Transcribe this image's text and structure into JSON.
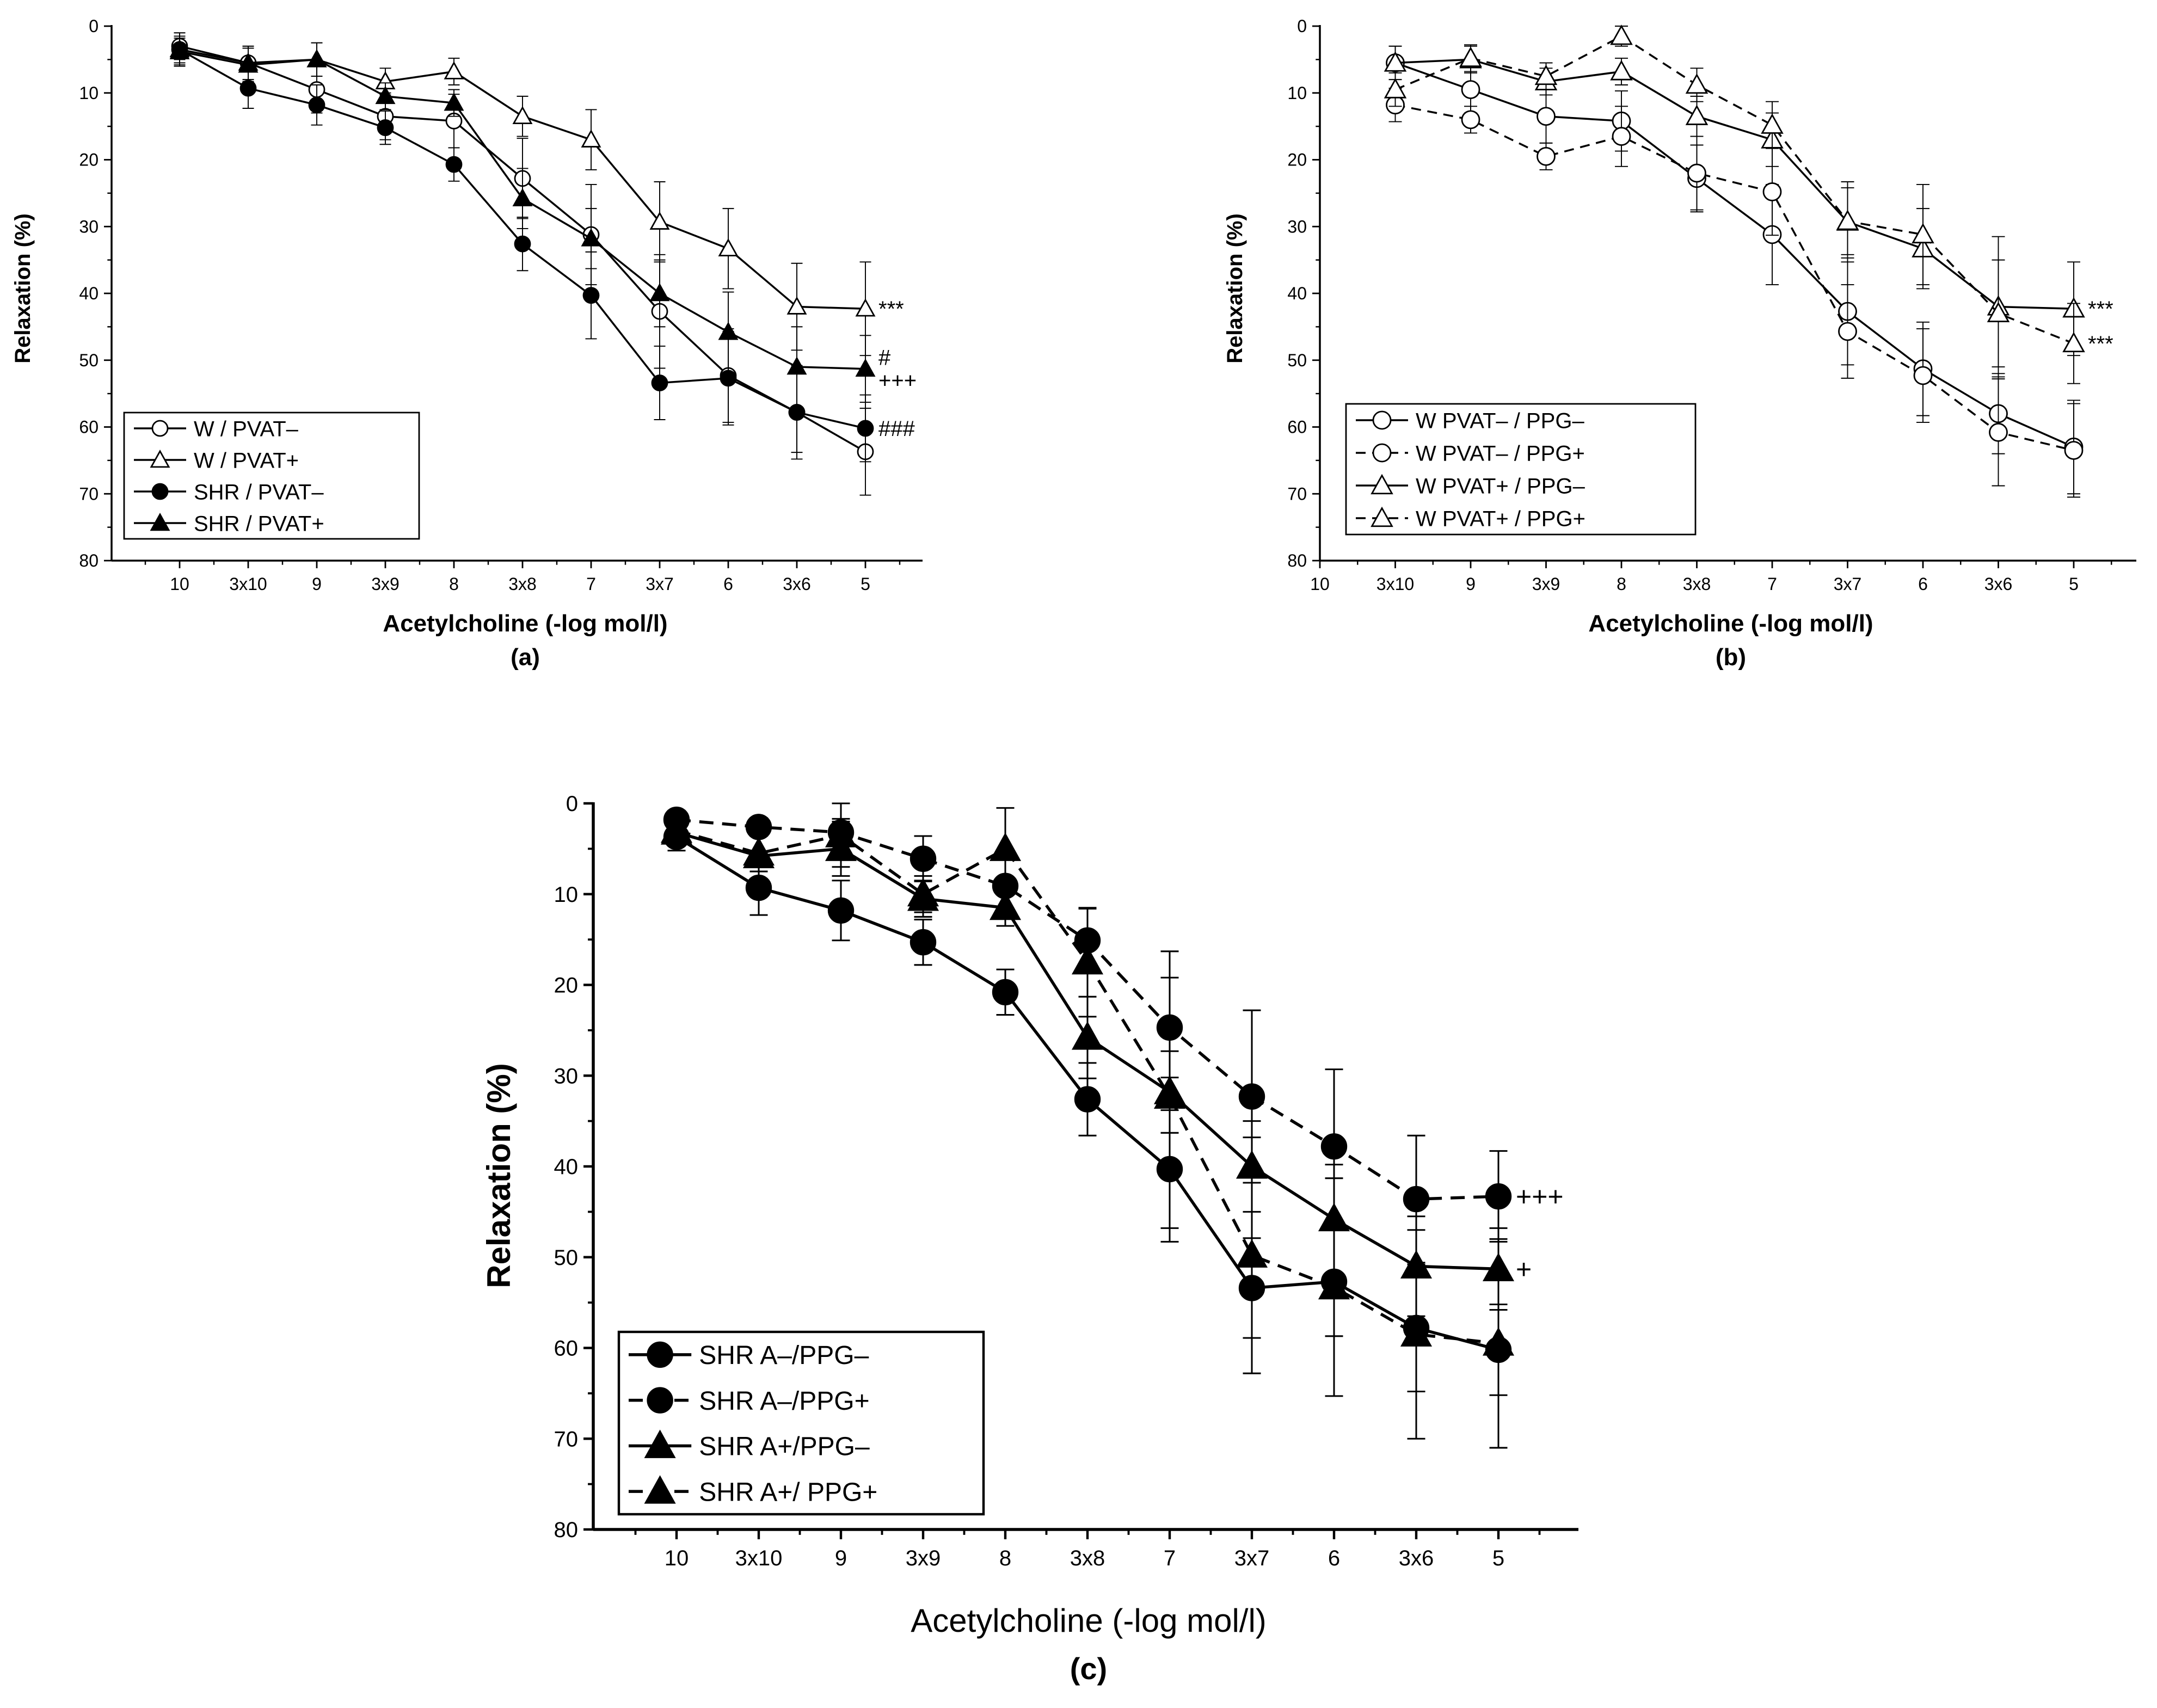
{
  "colors": {
    "ink": "#000000",
    "background": "#ffffff"
  },
  "chart_data": [
    {
      "id": "a",
      "type": "line",
      "panel_label": "(a)",
      "xlabel": "Acetylcholine (-log mol/l)",
      "ylabel": "Relaxation (%)",
      "categories": [
        "10",
        "3x10",
        "9",
        "3x9",
        "8",
        "3x8",
        "7",
        "3x7",
        "6",
        "3x6",
        "5"
      ],
      "ylim": [
        0,
        80
      ],
      "y_inverted": true,
      "yticks": [
        "0",
        "10",
        "20",
        "30",
        "40",
        "50",
        "60",
        "70",
        "80"
      ],
      "legend_position": "bottom-left",
      "series": [
        {
          "name": "W / PVAT–",
          "marker": "circle-open",
          "dash": "solid",
          "values": [
            3.0,
            5.5,
            9.5,
            13.5,
            14.2,
            22.8,
            31.2,
            42.7,
            52.3,
            57.8,
            63.7
          ],
          "errors": [
            2.0,
            2.5,
            3.5,
            3.5,
            4.0,
            6.0,
            7.5,
            8.5,
            7.0,
            6.0,
            6.5
          ],
          "annotation": ""
        },
        {
          "name": "W / PVAT+",
          "marker": "triangle-open",
          "dash": "solid",
          "values": [
            3.5,
            5.5,
            5.0,
            8.3,
            6.8,
            13.5,
            17.0,
            29.3,
            33.3,
            42.0,
            42.3
          ],
          "errors": [
            2.5,
            2.5,
            2.5,
            2.0,
            2.0,
            3.0,
            4.5,
            6.0,
            6.0,
            6.5,
            7.0
          ],
          "annotation": "***"
        },
        {
          "name": "SHR / PVAT–",
          "marker": "circle-filled",
          "dash": "solid",
          "values": [
            3.5,
            9.3,
            11.8,
            15.2,
            20.7,
            32.6,
            40.3,
            53.4,
            52.7,
            57.8,
            60.2
          ],
          "errors": [
            2.0,
            3.0,
            3.0,
            2.5,
            2.5,
            4.0,
            6.5,
            5.5,
            7.0,
            7.0,
            5.0
          ],
          "annotation": "###"
        },
        {
          "name": "SHR / PVAT+",
          "marker": "triangle-filled",
          "dash": "solid",
          "values": [
            3.8,
            5.8,
            5.0,
            10.5,
            11.5,
            25.8,
            31.8,
            40.0,
            45.8,
            51.0,
            51.3
          ],
          "errors": [
            2.0,
            2.5,
            2.5,
            2.0,
            2.0,
            4.5,
            4.5,
            5.0,
            6.0,
            6.0,
            5.0
          ],
          "annotation": "#\n+++"
        }
      ]
    },
    {
      "id": "b",
      "type": "line",
      "panel_label": "(b)",
      "xlabel": "Acetylcholine (-log mol/l)",
      "ylabel": "Relaxation (%)",
      "categories": [
        "10",
        "3x10",
        "9",
        "3x9",
        "8",
        "3x8",
        "7",
        "3x7",
        "6",
        "3x6",
        "5"
      ],
      "ylim": [
        0,
        80
      ],
      "y_inverted": true,
      "yticks": [
        "0",
        "10",
        "20",
        "30",
        "40",
        "50",
        "60",
        "70",
        "80"
      ],
      "legend_position": "bottom-left",
      "series": [
        {
          "name": "W PVAT– / PPG–",
          "marker": "circle-open",
          "dash": "solid",
          "values": [
            null,
            5.5,
            9.5,
            13.5,
            14.2,
            22.8,
            31.2,
            42.7,
            51.3,
            58.0,
            63.0
          ],
          "errors": [
            null,
            2.5,
            3.5,
            4.0,
            4.5,
            5.0,
            7.5,
            8.0,
            7.0,
            6.0,
            7.0
          ],
          "annotation": ""
        },
        {
          "name": "W PVAT– / PPG+",
          "marker": "circle-open",
          "dash": "dashed",
          "values": [
            null,
            11.8,
            14.0,
            19.5,
            16.5,
            22.0,
            24.8,
            45.7,
            52.3,
            60.8,
            63.5
          ],
          "errors": [
            null,
            2.5,
            2.0,
            2.0,
            4.5,
            5.5,
            6.5,
            7.0,
            7.0,
            8.0,
            7.0
          ],
          "annotation": ""
        },
        {
          "name": "W PVAT+ / PPG–",
          "marker": "triangle-open",
          "dash": "solid",
          "values": [
            null,
            5.5,
            5.0,
            8.3,
            6.8,
            13.5,
            17.0,
            29.3,
            33.3,
            42.0,
            42.3
          ],
          "errors": [
            null,
            2.5,
            2.0,
            2.0,
            2.0,
            3.0,
            4.0,
            6.0,
            6.0,
            10.5,
            7.0
          ],
          "annotation": "***"
        },
        {
          "name": "W PVAT+ / PPG+",
          "marker": "triangle-open",
          "dash": "dashed",
          "values": [
            null,
            9.5,
            4.8,
            7.5,
            1.5,
            8.8,
            14.8,
            29.2,
            31.2,
            43.0,
            47.5
          ],
          "errors": [
            null,
            2.5,
            2.0,
            2.0,
            1.5,
            2.5,
            3.5,
            5.0,
            7.5,
            8.0,
            6.0
          ],
          "annotation": "***"
        }
      ]
    },
    {
      "id": "c",
      "type": "line",
      "panel_label": "(c)",
      "xlabel": "Acetylcholine (-log mol/l)",
      "ylabel": "Relaxation (%)",
      "categories": [
        "10",
        "3x10",
        "9",
        "3x9",
        "8",
        "3x8",
        "7",
        "3x7",
        "6",
        "3x6",
        "5"
      ],
      "ylim": [
        0,
        80
      ],
      "y_inverted": true,
      "yticks": [
        "0",
        "10",
        "20",
        "30",
        "40",
        "50",
        "60",
        "70",
        "80"
      ],
      "legend_position": "bottom-left",
      "series": [
        {
          "name": "SHR A–/PPG–",
          "marker": "circle-filled",
          "dash": "solid",
          "values": [
            3.7,
            9.3,
            11.8,
            15.3,
            20.8,
            32.6,
            40.3,
            53.4,
            52.7,
            57.8,
            60.2
          ],
          "errors": [
            1.5,
            3.0,
            3.3,
            2.5,
            2.5,
            4.0,
            6.5,
            5.5,
            6.0,
            7.0,
            5.0
          ],
          "annotation": ""
        },
        {
          "name": "SHR A–/PPG+",
          "marker": "circle-filled",
          "dash": "dashed",
          "values": [
            1.8,
            2.6,
            3.2,
            6.1,
            9.1,
            15.1,
            24.7,
            32.3,
            37.8,
            43.6,
            43.3
          ],
          "errors": [
            1.0,
            1.0,
            1.5,
            2.5,
            3.0,
            3.5,
            5.5,
            9.5,
            8.5,
            7.0,
            5.0
          ],
          "annotation": "+++"
        },
        {
          "name": "SHR A+/PPG–",
          "marker": "triangle-filled",
          "dash": "solid",
          "values": [
            3.2,
            5.8,
            5.0,
            10.5,
            11.5,
            25.8,
            31.8,
            40.0,
            45.8,
            51.0,
            51.3
          ],
          "errors": [
            1.5,
            2.5,
            3.0,
            2.0,
            2.0,
            4.5,
            4.5,
            5.0,
            6.0,
            5.5,
            4.5
          ],
          "annotation": "+"
        },
        {
          "name": "SHR A+/ PPG+",
          "marker": "triangle-filled",
          "dash": "dashed",
          "values": [
            3.0,
            5.5,
            3.5,
            10.0,
            5.0,
            17.5,
            32.3,
            49.8,
            53.3,
            58.5,
            59.5
          ],
          "errors": [
            1.5,
            2.0,
            3.5,
            2.0,
            4.5,
            6.0,
            16.0,
            13.0,
            12.0,
            11.5,
            11.5
          ],
          "annotation": ""
        }
      ]
    }
  ]
}
